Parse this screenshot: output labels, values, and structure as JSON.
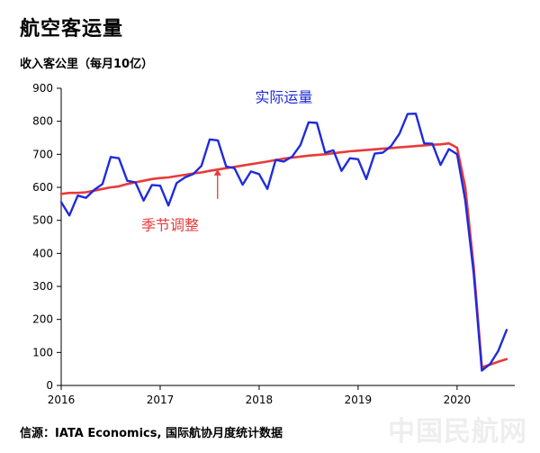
{
  "title": "航空客运量",
  "ylabel": "收入客公里（每月10亿）",
  "source": "信源：IATA Economics, 国际航协月度统计数据",
  "watermark": "中国民航网",
  "chart_data": {
    "type": "line",
    "title": "航空客运量",
    "ylabel": "收入客公里（每月10亿）",
    "xlabel": "",
    "xlim": [
      2016.0,
      2020.583
    ],
    "ylim": [
      0,
      900
    ],
    "yticks": [
      0,
      100,
      200,
      300,
      400,
      500,
      600,
      700,
      800,
      900
    ],
    "xticks": [
      2016,
      2017,
      2018,
      2019,
      2020
    ],
    "grid": false,
    "series": [
      {
        "name": "实际运量",
        "color": "#1f2bdc",
        "label_position": [
          2018.25,
          858
        ],
        "x": [
          2016.0,
          2016.083,
          2016.167,
          2016.25,
          2016.333,
          2016.417,
          2016.5,
          2016.583,
          2016.667,
          2016.75,
          2016.833,
          2016.917,
          2017.0,
          2017.083,
          2017.167,
          2017.25,
          2017.333,
          2017.417,
          2017.5,
          2017.583,
          2017.667,
          2017.75,
          2017.833,
          2017.917,
          2018.0,
          2018.083,
          2018.167,
          2018.25,
          2018.333,
          2018.417,
          2018.5,
          2018.583,
          2018.667,
          2018.75,
          2018.833,
          2018.917,
          2019.0,
          2019.083,
          2019.167,
          2019.25,
          2019.333,
          2019.417,
          2019.5,
          2019.583,
          2019.667,
          2019.75,
          2019.833,
          2019.917,
          2020.0,
          2020.083,
          2020.167,
          2020.25,
          2020.333,
          2020.417,
          2020.5
        ],
        "values": [
          555,
          515,
          575,
          568,
          592,
          610,
          692,
          688,
          620,
          615,
          560,
          607,
          605,
          545,
          613,
          630,
          640,
          665,
          745,
          742,
          663,
          658,
          608,
          648,
          640,
          595,
          683,
          678,
          693,
          728,
          797,
          795,
          705,
          712,
          650,
          688,
          685,
          625,
          702,
          705,
          725,
          762,
          822,
          823,
          733,
          732,
          668,
          716,
          700,
          560,
          340,
          45,
          65,
          105,
          168
        ]
      },
      {
        "name": "季节调整",
        "color": "#e83a3a",
        "label_position": [
          2017.1,
          470
        ],
        "x": [
          2016.0,
          2016.083,
          2016.167,
          2016.25,
          2016.333,
          2016.417,
          2016.5,
          2016.583,
          2016.667,
          2016.75,
          2016.833,
          2016.917,
          2017.0,
          2017.083,
          2017.167,
          2017.25,
          2017.333,
          2017.417,
          2017.5,
          2017.583,
          2017.667,
          2017.75,
          2017.833,
          2017.917,
          2018.0,
          2018.083,
          2018.167,
          2018.25,
          2018.333,
          2018.417,
          2018.5,
          2018.583,
          2018.667,
          2018.75,
          2018.833,
          2018.917,
          2019.0,
          2019.083,
          2019.167,
          2019.25,
          2019.333,
          2019.417,
          2019.5,
          2019.583,
          2019.667,
          2019.75,
          2019.833,
          2019.917,
          2020.0,
          2020.083,
          2020.167,
          2020.25,
          2020.333,
          2020.417,
          2020.5
        ],
        "values": [
          580,
          583,
          583,
          585,
          590,
          595,
          600,
          603,
          610,
          615,
          620,
          625,
          628,
          630,
          634,
          638,
          642,
          645,
          650,
          654,
          658,
          662,
          666,
          670,
          674,
          678,
          683,
          687,
          690,
          693,
          696,
          698,
          700,
          703,
          706,
          709,
          711,
          713,
          715,
          717,
          719,
          721,
          723,
          725,
          727,
          729,
          730,
          733,
          720,
          600,
          360,
          55,
          63,
          72,
          80
        ]
      }
    ],
    "annotations": [
      {
        "type": "arrow",
        "x": 2017.58,
        "from_y": 565,
        "to_y": 655,
        "color": "#e83a3a"
      }
    ]
  }
}
